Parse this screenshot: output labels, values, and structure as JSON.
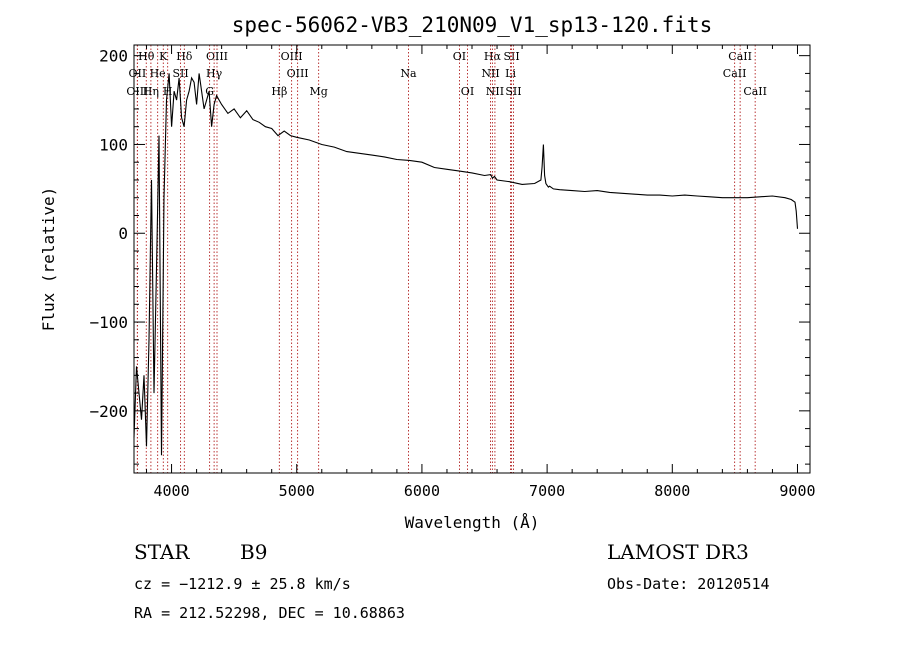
{
  "chart_data": {
    "type": "line",
    "title": "spec-56062-VB3_210N09_V1_sp13-120.fits",
    "xlabel": "Wavelength (Å)",
    "ylabel": "Flux (relative)",
    "xlim": [
      3700,
      9100
    ],
    "ylim": [
      -270,
      212
    ],
    "xticks": [
      4000,
      5000,
      6000,
      7000,
      8000,
      9000
    ],
    "yticks": [
      -200,
      -100,
      0,
      100,
      200
    ],
    "grid": false,
    "line_color": "#000000",
    "marker_color": "#b22222",
    "series": [
      {
        "name": "flux",
        "x": [
          3700,
          3720,
          3740,
          3760,
          3780,
          3800,
          3820,
          3840,
          3860,
          3880,
          3900,
          3920,
          3940,
          3960,
          3980,
          4000,
          4020,
          4040,
          4060,
          4080,
          4100,
          4120,
          4140,
          4160,
          4180,
          4200,
          4220,
          4240,
          4260,
          4280,
          4300,
          4320,
          4340,
          4360,
          4380,
          4400,
          4450,
          4500,
          4550,
          4600,
          4650,
          4700,
          4750,
          4800,
          4850,
          4900,
          4950,
          5000,
          5100,
          5200,
          5300,
          5400,
          5500,
          5600,
          5700,
          5800,
          5900,
          6000,
          6100,
          6200,
          6300,
          6400,
          6500,
          6550,
          6563,
          6580,
          6600,
          6700,
          6800,
          6900,
          6950,
          6960,
          6970,
          6980,
          6990,
          7000,
          7010,
          7020,
          7050,
          7100,
          7200,
          7300,
          7400,
          7500,
          7600,
          7700,
          7800,
          7900,
          8000,
          8100,
          8200,
          8300,
          8400,
          8500,
          8600,
          8700,
          8800,
          8900,
          8950,
          8980,
          8990,
          9000
        ],
        "y": [
          -230,
          -150,
          -180,
          -210,
          -160,
          -240,
          -120,
          60,
          -180,
          -40,
          110,
          -250,
          40,
          150,
          180,
          120,
          160,
          150,
          175,
          130,
          120,
          150,
          160,
          175,
          170,
          145,
          180,
          160,
          140,
          150,
          160,
          120,
          145,
          155,
          150,
          145,
          135,
          140,
          130,
          138,
          128,
          125,
          120,
          118,
          110,
          115,
          110,
          108,
          105,
          100,
          97,
          92,
          90,
          88,
          86,
          83,
          82,
          80,
          74,
          72,
          70,
          68,
          65,
          66,
          62,
          64,
          60,
          58,
          55,
          56,
          60,
          75,
          100,
          65,
          56,
          54,
          52,
          53,
          50,
          49,
          48,
          47,
          48,
          46,
          45,
          44,
          43,
          43,
          42,
          43,
          42,
          41,
          40,
          40,
          40,
          41,
          42,
          40,
          38,
          35,
          25,
          5
        ]
      }
    ],
    "line_markers": [
      {
        "label": "Hθ",
        "x": 3798,
        "row": 0
      },
      {
        "label": "OII",
        "x": 3727,
        "row": 1
      },
      {
        "label": "OIII",
        "x": 3727,
        "row": 2
      },
      {
        "label": "K",
        "x": 3934,
        "row": 0
      },
      {
        "label": "He",
        "x": 3889,
        "row": 1
      },
      {
        "label": "Hη",
        "x": 3835,
        "row": 2
      },
      {
        "label": "Hδ",
        "x": 4102,
        "row": 0
      },
      {
        "label": "SII",
        "x": 4072,
        "row": 1
      },
      {
        "label": "H",
        "x": 3969,
        "row": 2
      },
      {
        "label": "OIII",
        "x": 4363,
        "row": 0
      },
      {
        "label": "Hγ",
        "x": 4340,
        "row": 1
      },
      {
        "label": "G",
        "x": 4304,
        "row": 2
      },
      {
        "label": "OIII",
        "x": 4959,
        "row": 0
      },
      {
        "label": "OIII",
        "x": 5007,
        "row": 1
      },
      {
        "label": "Hβ",
        "x": 4861,
        "row": 2
      },
      {
        "label": "Mg",
        "x": 5175,
        "row": 2
      },
      {
        "label": "Na",
        "x": 5893,
        "row": 1
      },
      {
        "label": "OI",
        "x": 6300,
        "row": 0
      },
      {
        "label": "OI",
        "x": 6364,
        "row": 2
      },
      {
        "label": "Hα",
        "x": 6563,
        "row": 0
      },
      {
        "label": "SII",
        "x": 6716,
        "row": 0
      },
      {
        "label": "NII",
        "x": 6548,
        "row": 1
      },
      {
        "label": "Li",
        "x": 6708,
        "row": 1
      },
      {
        "label": "NII",
        "x": 6583,
        "row": 2
      },
      {
        "label": "SII",
        "x": 6731,
        "row": 2
      },
      {
        "label": "CaII",
        "x": 8542,
        "row": 0
      },
      {
        "label": "CaII",
        "x": 8498,
        "row": 1
      },
      {
        "label": "CaII",
        "x": 8662,
        "row": 2
      }
    ]
  },
  "info": {
    "object_type": "STAR",
    "subclass": "B9",
    "survey": "LAMOST DR3",
    "redshift": "cz = −1212.9 ± 25.8 km/s",
    "obs_date": "Obs-Date: 20120514",
    "coords": "RA = 212.52298, DEC =  10.68863"
  }
}
